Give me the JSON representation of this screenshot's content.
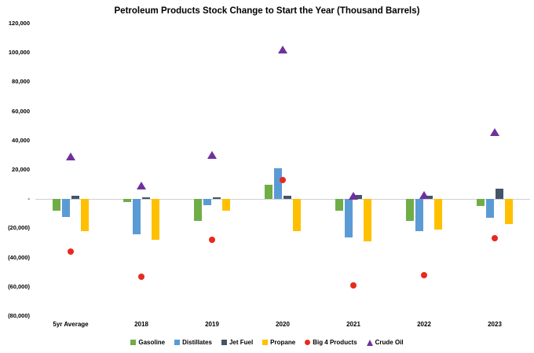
{
  "chart_data": {
    "type": "bar",
    "title": "Petroleum Products Stock Change to Start the Year (Thousand Barrels)",
    "categories": [
      "5yr Average",
      "2018",
      "2019",
      "2020",
      "2021",
      "2022",
      "2023"
    ],
    "series": [
      {
        "name": "Gasoline",
        "mark": "bar",
        "color": "#70AD47",
        "values": [
          -8000,
          -2000,
          -15000,
          10000,
          -8000,
          -15000,
          -5000
        ]
      },
      {
        "name": "Distillates",
        "mark": "bar",
        "color": "#5B9BD5",
        "values": [
          -12000,
          -24000,
          -4000,
          21000,
          -26000,
          -22000,
          -13000
        ]
      },
      {
        "name": "Jet Fuel",
        "mark": "bar",
        "color": "#44546A",
        "values": [
          2000,
          1000,
          1000,
          2000,
          3000,
          2000,
          7000
        ]
      },
      {
        "name": "Propane",
        "mark": "bar",
        "color": "#FFC000",
        "values": [
          -22000,
          -28000,
          -8000,
          -22000,
          -29000,
          -21000,
          -17000
        ]
      },
      {
        "name": "Big 4 Products",
        "mark": "circle",
        "color": "#E8291D",
        "values": [
          -36000,
          -53000,
          -28000,
          13000,
          -59000,
          -52000,
          -27000
        ]
      },
      {
        "name": "Crude Oil",
        "mark": "triangle",
        "color": "#7030A0",
        "values": [
          29000,
          9000,
          30000,
          102000,
          2000,
          3000,
          46000
        ]
      }
    ],
    "ylim": [
      -80000,
      120000
    ],
    "ytick_step": 20000,
    "ytick_labels": [
      "120,000",
      "100,000",
      "80,000",
      "60,000",
      "40,000",
      "20,000",
      "-",
      "(20,000)",
      "(40,000)",
      "(60,000)",
      "(80,000)"
    ],
    "xlabel": "",
    "ylabel": "",
    "grid": false,
    "legend_position": "bottom"
  }
}
